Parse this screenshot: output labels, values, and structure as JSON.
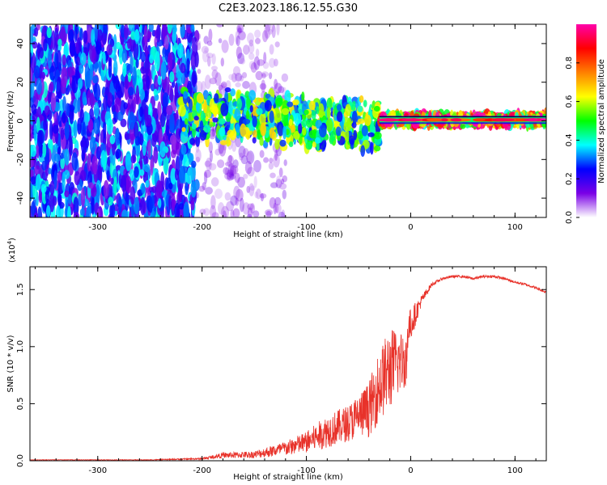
{
  "figure": {
    "title": "C2E3.2023.186.12.55.G30"
  },
  "chart_data": [
    {
      "type": "heatmap",
      "xlabel": "Height of straight line (km)",
      "ylabel": "Frequency (Hz)",
      "xlim": [
        -365,
        130
      ],
      "ylim": [
        -50,
        50
      ],
      "xticks": [
        -300,
        -200,
        -100,
        0,
        100
      ],
      "xtick_labels": [
        "-300",
        "-200",
        "-100",
        "0",
        "100"
      ],
      "yticks": [
        -40,
        -20,
        0,
        20,
        40
      ],
      "ytick_labels": [
        "-40",
        "-20",
        "0",
        "20",
        "40"
      ],
      "colorbar": {
        "label": "Normalized spectral amplitude",
        "range": [
          0,
          1
        ],
        "ticks": [
          0.0,
          0.2,
          0.4,
          0.6,
          0.8
        ],
        "tick_labels": [
          "0.0",
          "0.2",
          "0.4",
          "0.6",
          "0.8"
        ],
        "colormap": [
          "#ffffff",
          "#7a00e6",
          "#0000ff",
          "#00ffff",
          "#00ff00",
          "#ffff00",
          "#ff8000",
          "#ff0000",
          "#ff00aa"
        ]
      },
      "regions": [
        {
          "x_range": [
            -365,
            -205
          ],
          "freq_range": [
            -50,
            50
          ],
          "amplitude": 0.25,
          "description_density": "dense"
        },
        {
          "x_range": [
            -205,
            -120
          ],
          "freq_range": [
            -50,
            50
          ],
          "amplitude": 0.1,
          "description_density": "sparse"
        },
        {
          "x_range": [
            -220,
            -30
          ],
          "freq_range": [
            -10,
            15
          ],
          "amplitude": 0.45
        },
        {
          "x_range": [
            -30,
            130
          ],
          "freq_range": [
            -2,
            3
          ],
          "amplitude": 0.75
        }
      ],
      "grid": false
    },
    {
      "type": "line",
      "xlabel": "Height of straight line (km)",
      "ylabel": "SNR (10 * v/v)",
      "multiplier_label": "(x10",
      "multiplier_exponent": "4",
      "xlim": [
        -365,
        130
      ],
      "ylim": [
        0,
        1.7
      ],
      "xticks": [
        -300,
        -200,
        -100,
        0,
        100
      ],
      "xtick_labels": [
        "-300",
        "-200",
        "-100",
        "0",
        "100"
      ],
      "yticks": [
        0.0,
        0.5,
        1.0,
        1.5
      ],
      "ytick_labels": [
        "0.0",
        "0.5",
        "1.0",
        "1.5"
      ],
      "series": [
        {
          "color": "#e8322a",
          "x": [
            -365,
            -300,
            -250,
            -200,
            -180,
            -150,
            -120,
            -100,
            -80,
            -60,
            -40,
            -30,
            -20,
            -10,
            0,
            10,
            20,
            30,
            40,
            50,
            60,
            70,
            80,
            90,
            100,
            110,
            120,
            130
          ],
          "y": [
            0.01,
            0.01,
            0.01,
            0.02,
            0.05,
            0.05,
            0.1,
            0.15,
            0.25,
            0.35,
            0.45,
            0.7,
            0.9,
            1.1,
            1.25,
            1.42,
            1.55,
            1.6,
            1.62,
            1.62,
            1.6,
            1.62,
            1.62,
            1.6,
            1.57,
            1.55,
            1.52,
            1.48
          ],
          "noise": [
            0.003,
            0.003,
            0.003,
            0.01,
            0.03,
            0.04,
            0.08,
            0.12,
            0.18,
            0.2,
            0.3,
            0.4,
            0.45,
            0.35,
            0.25,
            0.08,
            0.03,
            0.02,
            0.02,
            0.02,
            0.02,
            0.02,
            0.02,
            0.02,
            0.02,
            0.02,
            0.02,
            0.02
          ]
        }
      ],
      "grid": false
    }
  ]
}
